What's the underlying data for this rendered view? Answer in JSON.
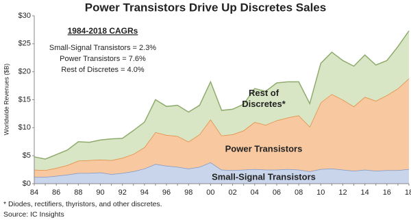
{
  "chart_data": {
    "type": "stacked-area",
    "title": "Power Transistors Drive Up Discretes Sales",
    "y_label": "Worldwide Revenues ($B)",
    "annotations": [
      "1984-2018 CAGRs",
      "Small-Signal Transistors = 2.3%",
      "Power Transistors = 7.6%",
      "Rest of Discretes = 4.0%"
    ],
    "footnote": "* Diodes, rectifiers, thyristors, and other discretes.",
    "source": "Source: IC Insights",
    "categories": [
      "84",
      null,
      "86",
      null,
      "88",
      null,
      "90",
      null,
      "92",
      null,
      "94",
      null,
      "96",
      null,
      "98",
      null,
      "00",
      null,
      "02",
      null,
      "04",
      null,
      "06",
      null,
      "08",
      null,
      "10",
      null,
      "12",
      null,
      "14",
      null,
      "16",
      null,
      "18"
    ],
    "ylim": [
      0,
      30
    ],
    "yticks": [
      {
        "value": 0,
        "label": "$0"
      },
      {
        "value": 5,
        "label": "$5"
      },
      {
        "value": 10,
        "label": "$10"
      },
      {
        "value": 15,
        "label": "$15"
      },
      {
        "value": 20,
        "label": "$20"
      },
      {
        "value": 25,
        "label": "$25"
      },
      {
        "value": 30,
        "label": "$30"
      }
    ],
    "series": [
      {
        "name": "Small-Signal Transistors",
        "color": "#c9d5ea",
        "line_color": "#7e96c6",
        "values": [
          1.2,
          1.2,
          1.4,
          1.6,
          1.9,
          1.9,
          2.0,
          1.7,
          1.9,
          2.2,
          2.7,
          3.5,
          3.2,
          3.0,
          2.7,
          3.0,
          3.8,
          2.5,
          2.4,
          2.5,
          2.6,
          2.5,
          2.5,
          2.6,
          2.5,
          2.2,
          2.6,
          2.7,
          2.5,
          2.3,
          2.5,
          2.3,
          2.4,
          2.4,
          2.6
        ]
      },
      {
        "name": "Power Transistors",
        "color": "#f8c9a0",
        "line_color": "#e3883d",
        "values": [
          1.3,
          1.2,
          1.4,
          1.7,
          2.2,
          2.3,
          2.3,
          2.5,
          2.7,
          3.1,
          3.8,
          5.7,
          5.5,
          5.5,
          4.8,
          5.8,
          7.7,
          6.1,
          6.4,
          7.0,
          8.4,
          8.0,
          8.8,
          9.2,
          9.7,
          8.0,
          11.9,
          13.3,
          12.5,
          11.5,
          13.0,
          12.5,
          13.4,
          14.6,
          16.2
        ]
      },
      {
        "name": "Rest of Discretes*",
        "color": "#d8e6c6",
        "line_color": "#8eab6c",
        "values": [
          2.3,
          2.0,
          2.4,
          2.7,
          3.4,
          3.2,
          3.5,
          3.8,
          3.5,
          4.2,
          4.5,
          5.8,
          5.1,
          5.5,
          5.3,
          5.2,
          6.7,
          4.5,
          4.5,
          4.7,
          6.0,
          6.0,
          6.7,
          6.4,
          6.0,
          4.1,
          7.0,
          7.5,
          7.0,
          7.2,
          7.5,
          6.4,
          6.2,
          7.5,
          8.5
        ]
      }
    ]
  }
}
